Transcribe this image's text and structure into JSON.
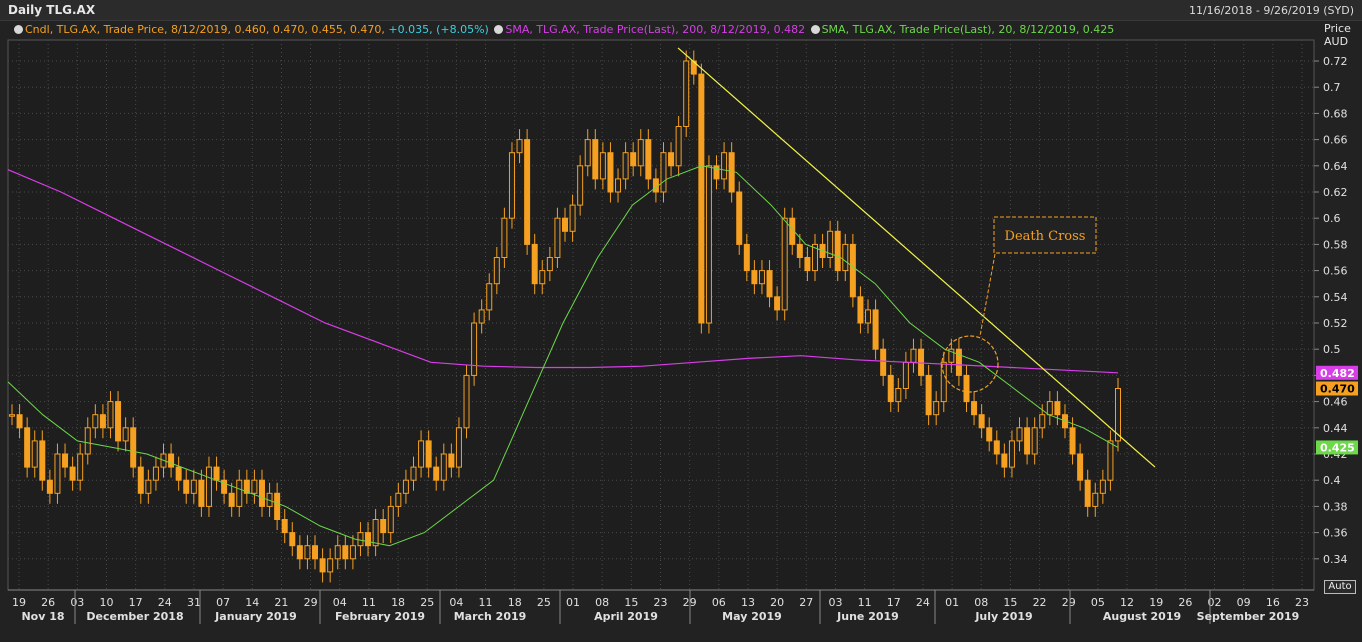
{
  "window": {
    "title": "Daily TLG.AX",
    "date_range": "11/16/2018 - 9/26/2019 (SYD)"
  },
  "legend": {
    "candle": {
      "label": "Cndl, TLG.AX, Trade Price, 8/12/2019, 0.460, 0.470, 0.455, 0.470,",
      "change": "+0.035, (+8.05%)",
      "color": "#f5a020",
      "change_color": "#3ad0e0"
    },
    "sma200": {
      "label": "SMA, TLG.AX, Trade Price(Last), 200, 8/12/2019, 0.482",
      "color": "#d83ee8"
    },
    "sma20": {
      "label": "SMA, TLG.AX, Trade Price(Last), 20, 8/12/2019, 0.425",
      "color": "#6cd84a"
    }
  },
  "axis_header": {
    "line1": "Price",
    "line2": "AUD"
  },
  "annotation": {
    "text": "Death Cross"
  },
  "auto_button": "Auto",
  "chart_data": {
    "type": "candlestick",
    "ylim": [
      0.32,
      0.74
    ],
    "yticks": [
      "0.72",
      "0.7",
      "0.68",
      "0.66",
      "0.64",
      "0.62",
      "0.6",
      "0.58",
      "0.56",
      "0.54",
      "0.52",
      "0.5",
      "0.48",
      "0.46",
      "0.44",
      "0.42",
      "0.4",
      "0.38",
      "0.36",
      "0.34"
    ],
    "xticks": [
      "19",
      "26",
      "03",
      "10",
      "17",
      "24",
      "31",
      "07",
      "14",
      "21",
      "29",
      "04",
      "11",
      "18",
      "25",
      "04",
      "11",
      "18",
      "25",
      "01",
      "08",
      "15",
      "23",
      "29",
      "06",
      "13",
      "20",
      "27",
      "03",
      "11",
      "17",
      "24",
      "01",
      "08",
      "15",
      "22",
      "29",
      "05",
      "12",
      "19",
      "26",
      "02",
      "09",
      "16",
      "23"
    ],
    "months": [
      "Nov 18",
      "December 2018",
      "January 2019",
      "February 2019",
      "March 2019",
      "April 2019",
      "May 2019",
      "June 2019",
      "July 2019",
      "August 2019",
      "September 2019"
    ],
    "last_values": {
      "sma200": "0.482",
      "price": "0.470",
      "sma20": "0.425"
    },
    "price_series": [
      0.45,
      0.44,
      0.41,
      0.43,
      0.4,
      0.39,
      0.42,
      0.41,
      0.4,
      0.42,
      0.44,
      0.45,
      0.44,
      0.46,
      0.43,
      0.44,
      0.41,
      0.39,
      0.4,
      0.41,
      0.42,
      0.41,
      0.4,
      0.39,
      0.4,
      0.38,
      0.41,
      0.4,
      0.39,
      0.38,
      0.4,
      0.39,
      0.4,
      0.38,
      0.39,
      0.37,
      0.36,
      0.35,
      0.34,
      0.35,
      0.34,
      0.33,
      0.34,
      0.35,
      0.34,
      0.35,
      0.36,
      0.35,
      0.37,
      0.36,
      0.38,
      0.39,
      0.4,
      0.41,
      0.43,
      0.41,
      0.4,
      0.42,
      0.41,
      0.44,
      0.48,
      0.52,
      0.53,
      0.55,
      0.57,
      0.6,
      0.65,
      0.66,
      0.58,
      0.55,
      0.56,
      0.57,
      0.6,
      0.59,
      0.61,
      0.64,
      0.66,
      0.63,
      0.65,
      0.62,
      0.63,
      0.65,
      0.64,
      0.66,
      0.63,
      0.62,
      0.65,
      0.64,
      0.67,
      0.72,
      0.71,
      0.52,
      0.64,
      0.63,
      0.65,
      0.62,
      0.58,
      0.56,
      0.55,
      0.56,
      0.54,
      0.53,
      0.6,
      0.58,
      0.57,
      0.56,
      0.58,
      0.57,
      0.59,
      0.56,
      0.58,
      0.54,
      0.52,
      0.53,
      0.5,
      0.48,
      0.46,
      0.47,
      0.49,
      0.5,
      0.48,
      0.45,
      0.46,
      0.49,
      0.5,
      0.48,
      0.46,
      0.45,
      0.44,
      0.43,
      0.42,
      0.41,
      0.43,
      0.44,
      0.42,
      0.44,
      0.45,
      0.46,
      0.45,
      0.44,
      0.42,
      0.4,
      0.38,
      0.39,
      0.4,
      0.43,
      0.47
    ],
    "sma200_series": [
      0.637,
      0.62,
      0.6,
      0.58,
      0.56,
      0.54,
      0.52,
      0.505,
      0.49,
      0.487,
      0.486,
      0.486,
      0.487,
      0.49,
      0.493,
      0.495,
      0.492,
      0.49,
      0.488,
      0.486,
      0.484,
      0.482
    ],
    "sma20_series": [
      0.475,
      0.45,
      0.43,
      0.425,
      0.42,
      0.41,
      0.4,
      0.39,
      0.38,
      0.365,
      0.355,
      0.35,
      0.36,
      0.38,
      0.4,
      0.46,
      0.52,
      0.57,
      0.61,
      0.63,
      0.64,
      0.635,
      0.61,
      0.58,
      0.57,
      0.55,
      0.52,
      0.5,
      0.49,
      0.47,
      0.45,
      0.44,
      0.425
    ],
    "trendline": {
      "from": {
        "x": "2019-04-29",
        "y": 0.73
      },
      "to": {
        "x": "2019-08-21",
        "y": 0.41
      }
    }
  }
}
